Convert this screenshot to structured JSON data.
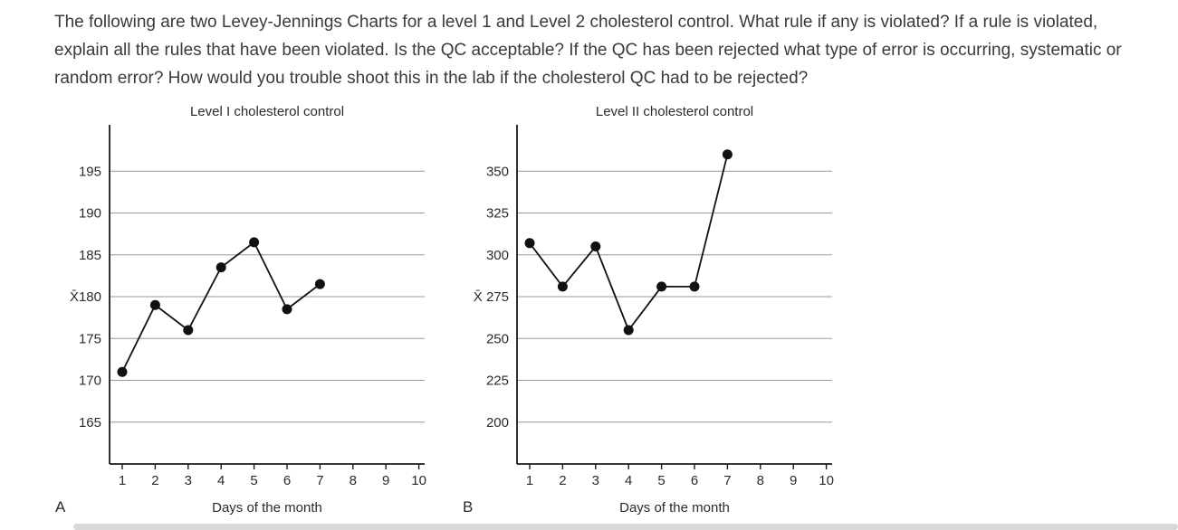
{
  "question": "The following are two Levey-Jennings Charts for a level 1 and Level 2 cholesterol control. What rule if any is violated? If a rule is violated, explain all the rules that have been violated. Is the QC acceptable? If the QC has been rejected what type of error is occurring, systematic or random error? How would you trouble shoot this in the lab if the cholesterol QC had to be rejected?",
  "colors": {
    "line": "#111111",
    "point": "#111111",
    "grid": "#999999",
    "axis": "#1a1a1a",
    "text": "#2b2b2b"
  },
  "chart_data": [
    {
      "type": "line",
      "panel_label": "A",
      "title": "Level I cholesterol control",
      "xlabel": "Days of the month",
      "mean": 180,
      "x_ticks": [
        "1",
        "2",
        "3",
        "4",
        "5",
        "6",
        "7",
        "8",
        "9",
        "10"
      ],
      "y_ticks": [
        {
          "value": 195,
          "label": "195"
        },
        {
          "value": 190,
          "label": "190"
        },
        {
          "value": 185,
          "label": "185"
        },
        {
          "value": 180,
          "label": "X̄180"
        },
        {
          "value": 175,
          "label": "175"
        },
        {
          "value": 170,
          "label": "170"
        },
        {
          "value": 165,
          "label": "165"
        }
      ],
      "x": [
        1,
        2,
        3,
        4,
        5,
        6,
        7
      ],
      "values": [
        171,
        179,
        176,
        183.5,
        186.5,
        178.5,
        181.5
      ],
      "ylim": [
        160,
        200
      ],
      "xlim": [
        1,
        10
      ],
      "grid": true,
      "legend": "none"
    },
    {
      "type": "line",
      "panel_label": "B",
      "title": "Level II cholesterol control",
      "xlabel": "Days of the month",
      "mean": 275,
      "x_ticks": [
        "1",
        "2",
        "3",
        "4",
        "5",
        "6",
        "7",
        "8",
        "9",
        "10"
      ],
      "y_ticks": [
        {
          "value": 350,
          "label": "350"
        },
        {
          "value": 325,
          "label": "325"
        },
        {
          "value": 300,
          "label": "300"
        },
        {
          "value": 275,
          "label": "X̄ 275"
        },
        {
          "value": 250,
          "label": "250"
        },
        {
          "value": 225,
          "label": "225"
        },
        {
          "value": 200,
          "label": "200"
        }
      ],
      "x": [
        1,
        2,
        3,
        4,
        5,
        6,
        7
      ],
      "values": [
        307,
        281,
        305,
        255,
        281,
        281,
        360
      ],
      "ylim": [
        175,
        375
      ],
      "xlim": [
        1,
        10
      ],
      "grid": true,
      "legend": "none"
    }
  ]
}
